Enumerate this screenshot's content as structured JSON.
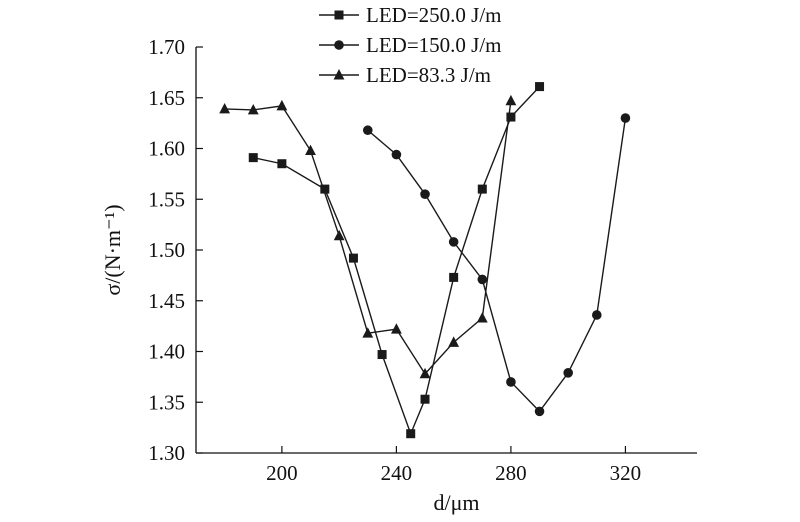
{
  "chart_data": {
    "type": "line",
    "xlabel": "d/μm",
    "ylabel": "σ/(N·m⁻¹)",
    "xlim": [
      170,
      345
    ],
    "ylim": [
      1.3,
      1.7
    ],
    "xticks": [
      200,
      240,
      280,
      320
    ],
    "yticks": [
      1.3,
      1.35,
      1.4,
      1.45,
      1.5,
      1.55,
      1.6,
      1.65,
      1.7
    ],
    "grid": false,
    "legend_position": "top-center",
    "series": [
      {
        "name": "LED=250.0 J/m",
        "marker": "square",
        "color": "#1a1a1a",
        "x": [
          190,
          200,
          215,
          225,
          235,
          245,
          250,
          260,
          270,
          280,
          290
        ],
        "y": [
          1.591,
          1.585,
          1.56,
          1.492,
          1.397,
          1.319,
          1.353,
          1.473,
          1.56,
          1.631,
          1.661
        ]
      },
      {
        "name": "LED=150.0 J/m",
        "marker": "circle",
        "color": "#1a1a1a",
        "x": [
          230,
          240,
          250,
          260,
          270,
          280,
          290,
          300,
          310,
          320
        ],
        "y": [
          1.618,
          1.594,
          1.555,
          1.508,
          1.471,
          1.37,
          1.341,
          1.379,
          1.436,
          1.63
        ]
      },
      {
        "name": "LED=83.3 J/m",
        "marker": "triangle",
        "color": "#1a1a1a",
        "x": [
          180,
          190,
          200,
          210,
          220,
          230,
          240,
          250,
          260,
          270,
          280
        ],
        "y": [
          1.639,
          1.638,
          1.642,
          1.598,
          1.514,
          1.418,
          1.422,
          1.378,
          1.409,
          1.433,
          1.647
        ]
      }
    ]
  }
}
